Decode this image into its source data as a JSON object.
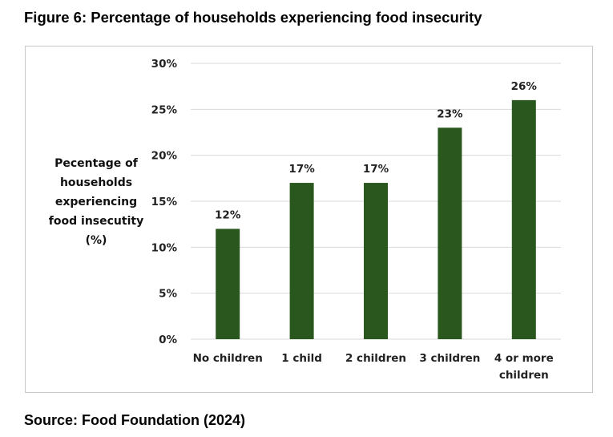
{
  "figure_title": "Figure 6: Percentage of households experiencing food insecurity",
  "source": "Source: Food Foundation (2024)",
  "colors": {
    "bar": "#2a571d",
    "grid": "#d9d9d9",
    "frame": "#c9c9c9"
  },
  "chart_data": {
    "type": "bar",
    "ylabel": "Pecentage of\nhouseholds\nexperiencing\nfood insecutity\n(%)",
    "xlabel": "",
    "categories": [
      "No children",
      "1 child",
      "2 children",
      "3 children",
      "4 or more\nchildren"
    ],
    "values": [
      12,
      17,
      17,
      23,
      26
    ],
    "data_labels": [
      "12%",
      "17%",
      "17%",
      "23%",
      "26%"
    ],
    "ylim": [
      0,
      30
    ],
    "yticks": [
      0,
      5,
      10,
      15,
      20,
      25,
      30
    ],
    "ytick_labels": [
      "0%",
      "5%",
      "10%",
      "15%",
      "20%",
      "25%",
      "30%"
    ],
    "grid": true,
    "legend": "none"
  }
}
